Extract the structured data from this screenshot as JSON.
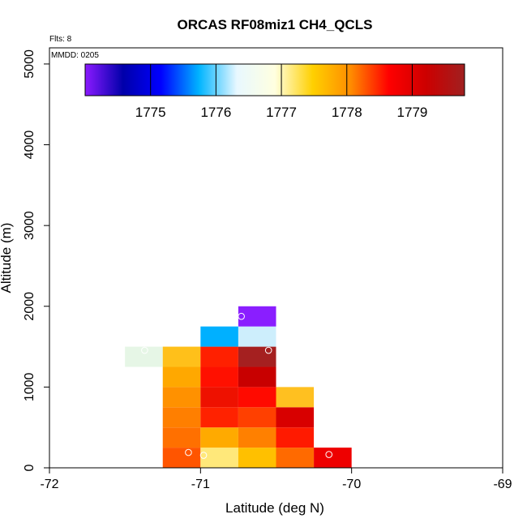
{
  "chart_data": {
    "type": "heatmap",
    "title": "ORCAS RF08miz1 CH4_QCLS",
    "xlabel": "Latitude (deg N)",
    "ylabel": "Altitude (m)",
    "xlim": [
      -72,
      -69
    ],
    "ylim": [
      0,
      5200
    ],
    "x_ticks": [
      "-72",
      "-71",
      "-70",
      "-69"
    ],
    "y_ticks": [
      "0",
      "1000",
      "2000",
      "3000",
      "4000",
      "5000"
    ],
    "annotations": {
      "flights": "Flts: 8",
      "mmdd": "MMDD: 0205"
    },
    "colorbar": {
      "range": [
        1774.0,
        1779.8
      ],
      "tick_values": [
        1775,
        1776,
        1777,
        1778,
        1779
      ],
      "tick_labels": [
        "1775",
        "1776",
        "1777",
        "1778",
        "1779"
      ],
      "color_stops": [
        "#8b1aff",
        "#0000aa",
        "#0000ff",
        "#00b4ff",
        "#e8f8ff",
        "#ffffe0",
        "#ffd000",
        "#ff8c00",
        "#ff0000",
        "#cc0000",
        "#a02020"
      ]
    },
    "cell_size": {
      "lat": 0.25,
      "alt": 250
    },
    "cells": [
      {
        "lat": -71.5,
        "alt": 1250,
        "color": "#e6f6e6"
      },
      {
        "lat": -71.25,
        "alt": 0,
        "color": "#ff5500"
      },
      {
        "lat": -71.25,
        "alt": 250,
        "color": "#ff7000"
      },
      {
        "lat": -71.25,
        "alt": 500,
        "color": "#ff7f00"
      },
      {
        "lat": -71.25,
        "alt": 750,
        "color": "#ff9100"
      },
      {
        "lat": -71.25,
        "alt": 1000,
        "color": "#ffa800"
      },
      {
        "lat": -71.25,
        "alt": 1250,
        "color": "#ffc01a"
      },
      {
        "lat": -71.0,
        "alt": 0,
        "color": "#ffe87a"
      },
      {
        "lat": -71.0,
        "alt": 250,
        "color": "#ffaa00"
      },
      {
        "lat": -71.0,
        "alt": 500,
        "color": "#ff2200"
      },
      {
        "lat": -71.0,
        "alt": 750,
        "color": "#ee1100"
      },
      {
        "lat": -71.0,
        "alt": 1000,
        "color": "#ff1000"
      },
      {
        "lat": -71.0,
        "alt": 1250,
        "color": "#ff2000"
      },
      {
        "lat": -71.0,
        "alt": 1500,
        "color": "#00b0ff"
      },
      {
        "lat": -70.75,
        "alt": 0,
        "color": "#ffc000"
      },
      {
        "lat": -70.75,
        "alt": 250,
        "color": "#ff8000"
      },
      {
        "lat": -70.75,
        "alt": 500,
        "color": "#ff4000"
      },
      {
        "lat": -70.75,
        "alt": 750,
        "color": "#ff0a00"
      },
      {
        "lat": -70.75,
        "alt": 1000,
        "color": "#c80000"
      },
      {
        "lat": -70.75,
        "alt": 1250,
        "color": "#a52020"
      },
      {
        "lat": -70.75,
        "alt": 1500,
        "color": "#cdeefc"
      },
      {
        "lat": -70.75,
        "alt": 1750,
        "color": "#8a1eff"
      },
      {
        "lat": -70.5,
        "alt": 0,
        "color": "#ff6a00"
      },
      {
        "lat": -70.5,
        "alt": 250,
        "color": "#ff1a00"
      },
      {
        "lat": -70.5,
        "alt": 500,
        "color": "#d80000"
      },
      {
        "lat": -70.5,
        "alt": 750,
        "color": "#ffc020"
      },
      {
        "lat": -70.25,
        "alt": 0,
        "color": "#ee0000"
      }
    ],
    "points": [
      {
        "lat": -71.08,
        "alt": 190
      },
      {
        "lat": -70.98,
        "alt": 155
      },
      {
        "lat": -70.15,
        "alt": 165
      },
      {
        "lat": -70.73,
        "alt": 1875
      },
      {
        "lat": -71.37,
        "alt": 1455
      },
      {
        "lat": -70.55,
        "alt": 1455
      }
    ]
  }
}
